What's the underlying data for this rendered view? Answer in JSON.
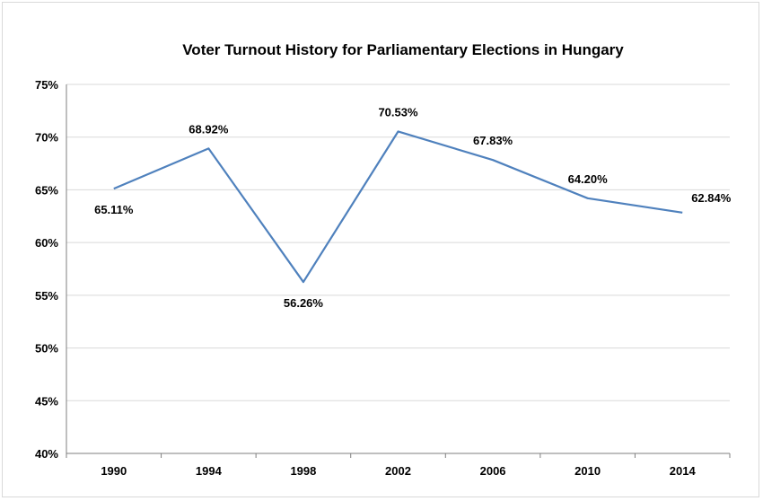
{
  "chart_data": {
    "type": "line",
    "title": "Voter Turnout History for Parliamentary Elections in Hungary",
    "xlabel": "",
    "ylabel": "",
    "categories": [
      "1990",
      "1994",
      "1998",
      "2002",
      "2006",
      "2010",
      "2014"
    ],
    "series": [
      {
        "values": [
          65.11,
          68.92,
          56.26,
          70.53,
          67.83,
          64.2,
          62.84
        ],
        "labels": [
          "65.11%",
          "68.92%",
          "56.26%",
          "70.53%",
          "67.83%",
          "64.20%",
          "62.84%"
        ],
        "label_position": [
          "below",
          "above",
          "below",
          "above",
          "above",
          "above",
          "right"
        ],
        "color": "#4f81bd"
      }
    ],
    "ylim": [
      40,
      75
    ],
    "yticks": [
      40,
      45,
      50,
      55,
      60,
      65,
      70,
      75
    ],
    "ytick_labels": [
      "40%",
      "45%",
      "50%",
      "55%",
      "60%",
      "65%",
      "70%",
      "75%"
    ],
    "grid": true,
    "legend": "none"
  }
}
